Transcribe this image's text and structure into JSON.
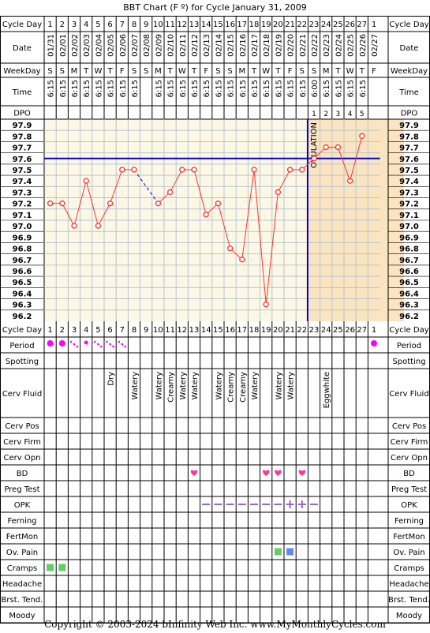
{
  "title": "BBT Chart (F º) for Cycle January 31, 2009",
  "footer": "Copyright © 2003-2024 bInfinity Web Inc.    www.MyMonthlyCycles.com",
  "ovulation_label": "OVULATION",
  "row_labels": {
    "cycle_day": "Cycle Day",
    "date": "Date",
    "weekday": "WeekDay",
    "time": "Time",
    "dpo": "DPO",
    "period": "Period",
    "spotting": "Spotting",
    "cerv_fluid": "Cerv Fluid",
    "cerv_pos": "Cerv Pos",
    "cerv_firm": "Cerv Firm",
    "cerv_opn": "Cerv Opn",
    "bd": "BD",
    "preg_test": "Preg Test",
    "opk": "OPK",
    "ferning": "Ferning",
    "fertmon": "FertMon",
    "ov_pain": "Ov. Pain",
    "cramps": "Cramps",
    "headache": "Headache",
    "brst_tend": "Brst. Tend.",
    "moody": "Moody"
  },
  "days": [
    "1",
    "2",
    "3",
    "4",
    "5",
    "6",
    "7",
    "8",
    "9",
    "10",
    "11",
    "12",
    "13",
    "14",
    "15",
    "16",
    "17",
    "18",
    "19",
    "20",
    "21",
    "22",
    "23",
    "24",
    "25",
    "26",
    "27",
    "1"
  ],
  "dates": [
    "01/31",
    "02/01",
    "02/02",
    "02/03",
    "02/04",
    "02/05",
    "02/06",
    "02/07",
    "02/08",
    "02/09",
    "02/10",
    "02/11",
    "02/12",
    "02/13",
    "02/14",
    "02/15",
    "02/16",
    "02/17",
    "02/18",
    "02/19",
    "02/20",
    "02/21",
    "02/22",
    "02/23",
    "02/24",
    "02/25",
    "02/26",
    "02/27"
  ],
  "weekdays": [
    "S",
    "S",
    "M",
    "T",
    "W",
    "T",
    "F",
    "S",
    "S",
    "M",
    "T",
    "W",
    "T",
    "F",
    "S",
    "S",
    "M",
    "T",
    "W",
    "T",
    "F",
    "S",
    "S",
    "M",
    "T",
    "W",
    "T",
    "F"
  ],
  "times": [
    "6:15",
    "6:15",
    "6:15",
    "6:15",
    "6:15",
    "6:15",
    "6:15",
    "6:15",
    "",
    "6:15",
    "6:15",
    "6:15",
    "6:15",
    "6:15",
    "6:15",
    "6:15",
    "6:15",
    "6:15",
    "6:15",
    "6:15",
    "6:15",
    "6:15",
    "6:00",
    "6:15",
    "6:15",
    "6:15",
    "6:15",
    ""
  ],
  "dpo": [
    "",
    "",
    "",
    "",
    "",
    "",
    "",
    "",
    "",
    "",
    "",
    "",
    "",
    "",
    "",
    "",
    "",
    "",
    "",
    "",
    "",
    "",
    "1",
    "2",
    "3",
    "4",
    "5",
    ""
  ],
  "cerv_fluid": [
    "",
    "",
    "",
    "",
    "",
    "Dry",
    "",
    "Watery",
    "",
    "Watery",
    "Creamy",
    "Watery",
    "Watery",
    "",
    "Watery",
    "Creamy",
    "Creamy",
    "Watery",
    "",
    "Watery",
    "Watery",
    "",
    "",
    "Eggwhite",
    "",
    "",
    "",
    ""
  ],
  "period": [
    "heavy",
    "heavy",
    "light",
    "medium",
    "light",
    "light",
    "light",
    "",
    "",
    "",
    "",
    "",
    "",
    "",
    "",
    "",
    "",
    "",
    "",
    "",
    "",
    "",
    "",
    "",
    "",
    "",
    "",
    "heavy"
  ],
  "bd": [
    13,
    19,
    20,
    22
  ],
  "opk": [
    "",
    "",
    "",
    "",
    "",
    "",
    "",
    "",
    "",
    "",
    "",
    "",
    "",
    "minus",
    "minus",
    "minus",
    "minus",
    "minus",
    "minus",
    "minus",
    "plus",
    "plus",
    "minus",
    "",
    "",
    "",
    "",
    ""
  ],
  "ov_pain": [
    {
      "day_index": 20,
      "color": "#66cc66"
    },
    {
      "day_index": 21,
      "color": "#6688ee"
    }
  ],
  "cramps": [
    {
      "day_index": 1,
      "color": "#66cc66"
    },
    {
      "day_index": 2,
      "color": "#66cc66"
    }
  ],
  "colors": {
    "period": "#ff00ff",
    "bd": "#ff3399",
    "opk": "#9966cc",
    "temp_line": "#ff3333",
    "coverline": "#0000cc",
    "ovulation_line": "#0000cc",
    "luteal_bg": "#fbe4c0",
    "follicular_bg": "#fdf8e6",
    "grid": "#b9c6cf"
  },
  "chart_data": {
    "type": "line",
    "y_ticks": [
      "97.9",
      "97.8",
      "97.7",
      "97.6",
      "97.5",
      "97.4",
      "97.3",
      "97.2",
      "97.1",
      "97.0",
      "96.9",
      "96.8",
      "96.7",
      "96.6",
      "96.5",
      "96.4",
      "96.3",
      "96.2"
    ],
    "ylim": [
      96.2,
      97.9
    ],
    "coverline": 97.6,
    "ovulation_day_index": 22,
    "temps": [
      97.2,
      97.2,
      97.0,
      97.4,
      97.0,
      97.2,
      97.5,
      97.5,
      null,
      97.2,
      97.3,
      97.5,
      97.5,
      97.1,
      97.2,
      96.8,
      96.7,
      97.5,
      96.3,
      97.3,
      97.5,
      97.5,
      97.6,
      97.7,
      97.7,
      97.4,
      97.8,
      null
    ]
  }
}
